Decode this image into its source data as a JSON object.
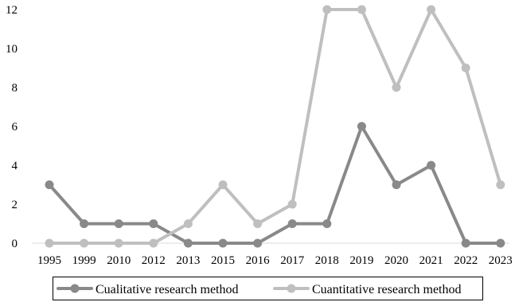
{
  "chart_data": {
    "type": "line",
    "categories": [
      "1995",
      "1999",
      "2010",
      "2012",
      "2013",
      "2015",
      "2016",
      "2017",
      "2018",
      "2019",
      "2020",
      "2021",
      "2022",
      "2023"
    ],
    "series": [
      {
        "name": "Cualitative research method",
        "color": "#898989",
        "values": [
          3,
          1,
          1,
          1,
          0,
          0,
          0,
          1,
          1,
          6,
          3,
          4,
          0,
          0
        ]
      },
      {
        "name": "Cuantitative research method",
        "color": "#bfbfbf",
        "values": [
          0,
          0,
          0,
          0,
          1,
          3,
          1,
          2,
          12,
          12,
          8,
          12,
          9,
          3
        ]
      }
    ],
    "ylim": [
      0,
      12
    ],
    "yticks": [
      0,
      2,
      4,
      6,
      8,
      10,
      12
    ],
    "grid": false,
    "legend_position": "bottom"
  }
}
